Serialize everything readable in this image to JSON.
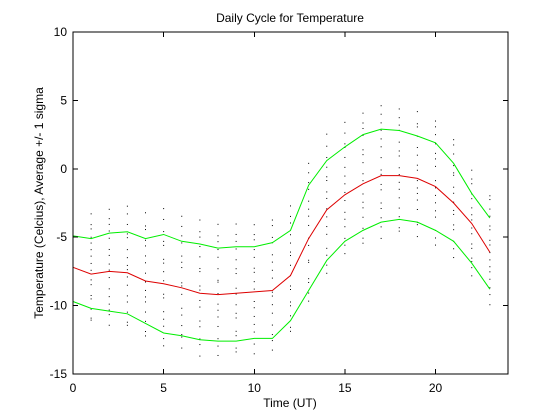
{
  "chart_data": {
    "type": "line",
    "title": "Daily Cycle for Temperature",
    "xlabel": "Time (UT)",
    "ylabel": "Temperature (Celcius), Average +/- 1 sigma",
    "xlim": [
      0,
      24
    ],
    "ylim": [
      -15,
      10
    ],
    "x_ticks": [
      0,
      5,
      10,
      15,
      20
    ],
    "y_ticks": [
      -15,
      -10,
      -5,
      0,
      5,
      10
    ],
    "x_tick_labels": [
      "0",
      "5",
      "10",
      "15",
      "20"
    ],
    "y_tick_labels": [
      "-15",
      "-10",
      "-5",
      "0",
      "5",
      "10"
    ],
    "grid": false,
    "legend": "none",
    "x": [
      0,
      1,
      2,
      3,
      4,
      5,
      6,
      7,
      8,
      9,
      10,
      11,
      12,
      13,
      14,
      15,
      16,
      17,
      18,
      19,
      20,
      21,
      22,
      23
    ],
    "series": [
      {
        "role": "upper",
        "color": "#00ee00",
        "values": [
          -4.9,
          -5.1,
          -4.7,
          -4.6,
          -5.1,
          -4.8,
          -5.3,
          -5.5,
          -5.8,
          -5.7,
          -5.7,
          -5.4,
          -4.5,
          -1.2,
          0.6,
          1.6,
          2.5,
          2.9,
          2.8,
          2.4,
          1.9,
          0.4,
          -1.8,
          -3.6
        ]
      },
      {
        "role": "average",
        "color": "#dd0000",
        "values": [
          -7.2,
          -7.7,
          -7.5,
          -7.6,
          -8.2,
          -8.4,
          -8.7,
          -9.1,
          -9.2,
          -9.1,
          -9.0,
          -8.9,
          -7.8,
          -5.1,
          -3.0,
          -1.9,
          -1.1,
          -0.5,
          -0.5,
          -0.7,
          -1.3,
          -2.5,
          -4.0,
          -6.1
        ]
      },
      {
        "role": "lower",
        "color": "#00ee00",
        "values": [
          -9.7,
          -10.2,
          -10.4,
          -10.6,
          -11.3,
          -12.0,
          -12.2,
          -12.5,
          -12.6,
          -12.6,
          -12.4,
          -12.4,
          -11.1,
          -8.9,
          -6.7,
          -5.3,
          -4.5,
          -3.9,
          -3.7,
          -3.9,
          -4.5,
          -5.3,
          -6.9,
          -8.8
        ]
      }
    ],
    "scatter": {
      "description_color": "#000000",
      "points_per_hour": 16
    }
  }
}
